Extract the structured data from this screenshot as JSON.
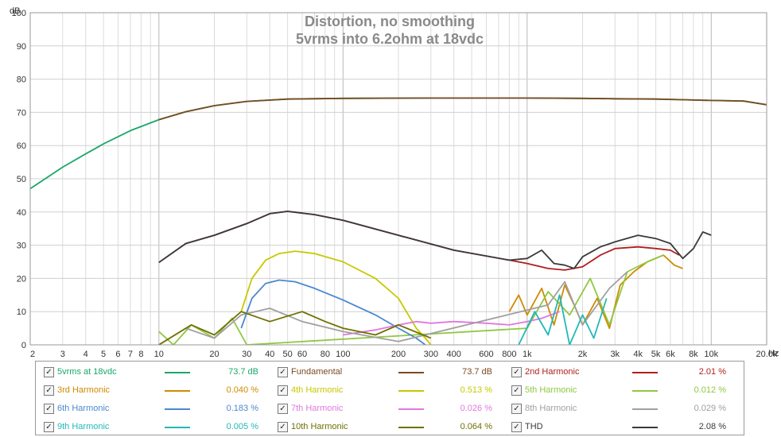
{
  "chart_data": {
    "type": "line",
    "title": "Distortion, no smoothing",
    "subtitle": "5vrms into 6.2ohm at 18vdc",
    "ylabel": "dB",
    "xlabel": "Hz",
    "x_scale": "log",
    "xlim": [
      2,
      20000
    ],
    "ylim": [
      0,
      100
    ],
    "grid": true,
    "legend_position": "bottom",
    "y_ticks": [
      "0",
      "10",
      "20",
      "30",
      "40",
      "50",
      "60",
      "70",
      "80",
      "90",
      "100"
    ],
    "x_ticks": [
      {
        "v": 2,
        "label": "2"
      },
      {
        "v": 3,
        "label": "3"
      },
      {
        "v": 4,
        "label": "4"
      },
      {
        "v": 5,
        "label": "5"
      },
      {
        "v": 6,
        "label": "6"
      },
      {
        "v": 7,
        "label": "7"
      },
      {
        "v": 8,
        "label": "8"
      },
      {
        "v": 10,
        "label": "10"
      },
      {
        "v": 20,
        "label": "20"
      },
      {
        "v": 30,
        "label": "30"
      },
      {
        "v": 40,
        "label": "40"
      },
      {
        "v": 50,
        "label": "50"
      },
      {
        "v": 60,
        "label": "60"
      },
      {
        "v": 80,
        "label": "80"
      },
      {
        "v": 100,
        "label": "100"
      },
      {
        "v": 200,
        "label": "200"
      },
      {
        "v": 300,
        "label": "300"
      },
      {
        "v": 400,
        "label": "400"
      },
      {
        "v": 600,
        "label": "600"
      },
      {
        "v": 800,
        "label": "800"
      },
      {
        "v": 1000,
        "label": "1k"
      },
      {
        "v": 2000,
        "label": "2k"
      },
      {
        "v": 3000,
        "label": "3k"
      },
      {
        "v": 4000,
        "label": "4k"
      },
      {
        "v": 5000,
        "label": "5k"
      },
      {
        "v": 6000,
        "label": "6k"
      },
      {
        "v": 8000,
        "label": "8k"
      },
      {
        "v": 10000,
        "label": "10k"
      },
      {
        "v": 20000,
        "label": "20.0k"
      }
    ],
    "series": [
      {
        "name": "5vrms at 18vdc",
        "value": "73.7 dB",
        "color": "#1aa86a",
        "x": [
          2,
          3,
          4,
          5,
          7,
          10,
          14,
          20,
          30,
          50,
          100,
          300,
          1000,
          2000,
          3000,
          5000,
          7000,
          10000,
          15000,
          20000
        ],
        "y": [
          47,
          53.5,
          57.5,
          60.5,
          64.5,
          67.8,
          70.2,
          72,
          73.3,
          74,
          74.2,
          74.3,
          74.3,
          74.2,
          74.1,
          74,
          73.8,
          73.6,
          73.4,
          72.3
        ]
      },
      {
        "name": "Fundamental",
        "value": "73.7 dB",
        "color": "#7b4a22",
        "x": [
          10,
          14,
          20,
          30,
          50,
          100,
          300,
          1000,
          2000,
          3000,
          5000,
          7000,
          10000,
          15000,
          20000
        ],
        "y": [
          67.8,
          70.2,
          72,
          73.3,
          74,
          74.2,
          74.3,
          74.3,
          74.2,
          74.1,
          74,
          73.8,
          73.6,
          73.4,
          72.3
        ]
      },
      {
        "name": "2nd Harmonic",
        "value": "2.01 %",
        "color": "#b01e1e",
        "x": [
          10,
          14,
          20,
          30,
          40,
          50,
          70,
          100,
          200,
          400,
          800,
          1000,
          1300,
          1600,
          2000,
          2500,
          3000,
          4000,
          5000,
          6000,
          6700
        ],
        "y": [
          24.8,
          30.5,
          33,
          36.5,
          39.5,
          40.2,
          39.2,
          37.5,
          33,
          28.5,
          25.5,
          24.5,
          23,
          22.5,
          23.5,
          27,
          29,
          29.5,
          29,
          28.5,
          27
        ]
      },
      {
        "name": "3rd Harmonic",
        "value": "0.040 %",
        "color": "#d08a00",
        "x": [
          800,
          900,
          1000,
          1200,
          1400,
          1600,
          1800,
          2000,
          2400,
          2800,
          3200,
          3800,
          4500,
          5500,
          6300,
          7000
        ],
        "y": [
          10,
          15,
          9,
          17,
          6,
          18,
          12,
          6,
          14,
          5,
          18,
          22,
          25,
          27,
          24,
          23
        ]
      },
      {
        "name": "4th Harmonic",
        "value": "0.513 %",
        "color": "#c8c800",
        "x": [
          28,
          32,
          38,
          45,
          55,
          70,
          100,
          150,
          200,
          250,
          280,
          300
        ],
        "y": [
          10,
          20,
          25.5,
          27.5,
          28.2,
          27.5,
          25,
          20,
          14,
          5,
          2,
          0
        ]
      },
      {
        "name": "5th Harmonic",
        "value": "0.012 %",
        "color": "#90c840",
        "x": [
          10,
          12,
          15,
          20,
          25,
          30,
          1000,
          1300,
          1700,
          2200,
          2800,
          3500,
          4500,
          5500
        ],
        "y": [
          4,
          0,
          6,
          2,
          8,
          0,
          5,
          16,
          9,
          20,
          6,
          22,
          25,
          27
        ]
      },
      {
        "name": "6th Harmonic",
        "value": "0.183 %",
        "color": "#4a88d0",
        "x": [
          28,
          32,
          38,
          45,
          55,
          70,
          100,
          150,
          200,
          250,
          280
        ],
        "y": [
          5,
          14,
          18.5,
          19.5,
          19,
          17,
          13.5,
          9,
          5,
          2,
          0
        ]
      },
      {
        "name": "7th Harmonic",
        "value": "0.026 %",
        "color": "#e078e0",
        "x": [
          100,
          150,
          200,
          250,
          300,
          400,
          600,
          800,
          1000,
          1200,
          1500
        ],
        "y": [
          3,
          4.5,
          6,
          7,
          6.5,
          7,
          6.5,
          6,
          7,
          8,
          10
        ]
      },
      {
        "name": "8th Harmonic",
        "value": "0.029 %",
        "color": "#a0a0a0",
        "x": [
          10,
          14,
          20,
          28,
          40,
          60,
          100,
          200,
          1300,
          1600,
          2000,
          2800,
          3500
        ],
        "y": [
          0,
          5,
          2,
          9,
          11,
          7,
          4,
          1,
          12,
          19,
          6,
          17,
          22
        ]
      },
      {
        "name": "9th Harmonic",
        "value": "0.005 %",
        "color": "#22b8b8",
        "x": [
          900,
          1100,
          1300,
          1500,
          1700,
          2000,
          2300,
          2700
        ],
        "y": [
          0,
          10,
          3,
          15,
          0,
          9,
          2,
          14
        ]
      },
      {
        "name": "10th Harmonic",
        "value": "0.064 %",
        "color": "#707000",
        "x": [
          10,
          15,
          20,
          28,
          40,
          60,
          80,
          100,
          150,
          200,
          300
        ],
        "y": [
          0,
          6,
          3,
          10,
          7,
          10,
          7,
          5,
          3,
          6,
          2
        ]
      },
      {
        "name": "THD",
        "value": "2.08 %",
        "color": "#3a3a3a",
        "x": [
          10,
          14,
          20,
          30,
          40,
          50,
          70,
          100,
          200,
          400,
          800,
          1000,
          1200,
          1400,
          1600,
          1800,
          2000,
          2500,
          3000,
          4000,
          5000,
          6000,
          7000,
          8000,
          9000,
          10000
        ],
        "y": [
          24.8,
          30.5,
          33,
          36.5,
          39.5,
          40.2,
          39.2,
          37.5,
          33,
          28.5,
          25.5,
          26,
          28.5,
          24.5,
          24,
          23,
          26.5,
          29.5,
          31,
          33,
          32,
          30.5,
          26,
          29,
          34,
          33
        ]
      }
    ]
  }
}
